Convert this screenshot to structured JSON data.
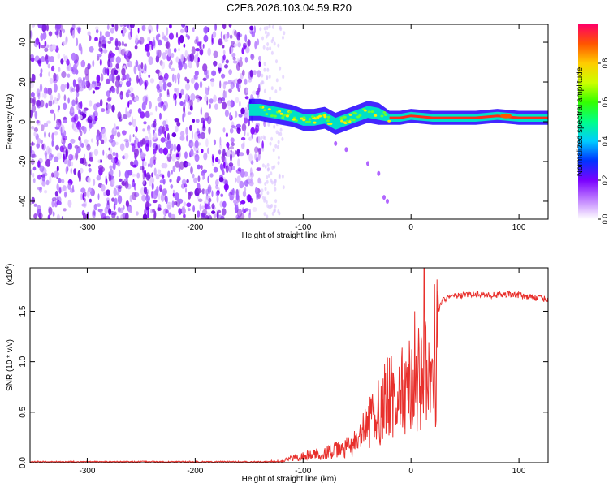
{
  "title": "C2E6.2026.103.04.59.R20",
  "chart_data": [
    {
      "type": "heatmap",
      "name": "spectrogram",
      "xlabel": "Height of straight line (km)",
      "ylabel": "Frequency (Hz)",
      "xlim": [
        -353,
        127
      ],
      "ylim": [
        -49,
        49
      ],
      "xticks": [
        -300,
        -200,
        -100,
        0,
        100
      ],
      "yticks": [
        -40,
        -20,
        0,
        20,
        40
      ],
      "noise_region_x": [
        -353,
        -140
      ],
      "signal_track": {
        "x": [
          -150,
          -140,
          -130,
          -120,
          -110,
          -100,
          -90,
          -80,
          -70,
          -60,
          -50,
          -40,
          -30,
          -20,
          -10,
          0,
          20,
          40,
          60,
          80,
          100,
          127
        ],
        "freq": [
          6,
          6,
          5,
          4,
          3,
          1,
          1,
          2,
          -1,
          1,
          3,
          5,
          4,
          2,
          2,
          3,
          2,
          2,
          2,
          3,
          2,
          2
        ]
      },
      "colorbar": {
        "label": "Normalized spectral amplitude",
        "ticks": [
          "0.0",
          "0.2",
          "0.4",
          "0.6",
          "0.8"
        ],
        "range": [
          0,
          1
        ]
      }
    },
    {
      "type": "line",
      "name": "snr",
      "xlabel": "Height of straight line (km)",
      "ylabel": "SNR (10 * v/v)",
      "multiplier": "(x10",
      "multiplier_exp": "4",
      "xlim": [
        -353,
        127
      ],
      "ylim": [
        0,
        1.93
      ],
      "xticks": [
        -300,
        -200,
        -100,
        0,
        100
      ],
      "yticks": [
        "0.0",
        "0.5",
        "1.0",
        "1.5"
      ],
      "color": "#e8302c",
      "series": {
        "x": [
          -353,
          -300,
          -250,
          -200,
          -150,
          -120,
          -110,
          -100,
          -90,
          -80,
          -70,
          -60,
          -50,
          -40,
          -30,
          -25,
          -20,
          -15,
          -10,
          -5,
          0,
          5,
          10,
          15,
          20,
          25,
          30,
          40,
          50,
          60,
          70,
          80,
          90,
          100,
          110,
          127
        ],
        "y": [
          0.01,
          0.01,
          0.01,
          0.01,
          0.01,
          0.02,
          0.06,
          0.08,
          0.1,
          0.12,
          0.15,
          0.18,
          0.25,
          0.45,
          0.65,
          0.75,
          0.85,
          0.7,
          0.9,
          0.8,
          1.0,
          1.2,
          1.1,
          1.0,
          1.2,
          1.5,
          1.62,
          1.65,
          1.66,
          1.67,
          1.66,
          1.66,
          1.67,
          1.66,
          1.64,
          1.62
        ]
      }
    }
  ]
}
